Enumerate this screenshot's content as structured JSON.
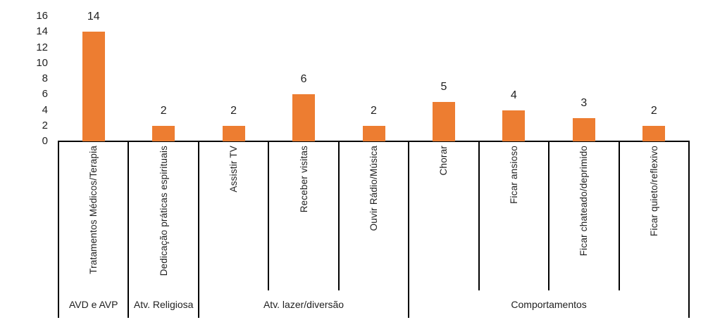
{
  "chart_data": {
    "type": "bar",
    "title": "",
    "xlabel": "",
    "ylabel": "",
    "categories": [
      "Tratamentos Médicos/Terapia",
      "Dedicação práticas espirituais",
      "Assistir TV",
      "Receber visitas",
      "Ouvir Rádio/Música",
      "Chorar",
      "Ficar ansioso",
      "Ficar chateado/deprimido",
      "Ficar quieto/reflexivo"
    ],
    "values": [
      14,
      2,
      2,
      6,
      2,
      5,
      4,
      3,
      2
    ],
    "groups": [
      {
        "label": "AVD e AVP",
        "count": 1
      },
      {
        "label": "Atv. Religiosa",
        "count": 1
      },
      {
        "label": "Atv. lazer/diversão",
        "count": 3
      },
      {
        "label": "Comportamentos",
        "count": 4
      }
    ],
    "y_ticks": [
      0,
      2,
      4,
      6,
      8,
      10,
      12,
      14,
      16
    ],
    "ylim": [
      0,
      16
    ],
    "bar_color": "#ED7D31",
    "axis_color": "#000000",
    "text_color": "#1f1f1f",
    "grid": false,
    "legend": false,
    "data_labels": true
  }
}
